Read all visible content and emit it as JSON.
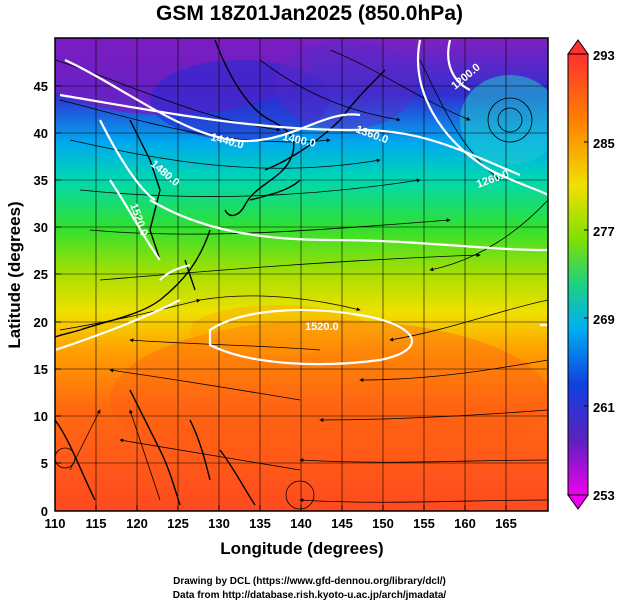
{
  "title": "GSM 18Z01Jan2025 (850.0hPa)",
  "axes": {
    "xlabel": "Longitude (degrees)",
    "ylabel": "Latitude  (degrees)",
    "xticks": [
      "110",
      "115",
      "120",
      "125",
      "130",
      "135",
      "140",
      "145",
      "150",
      "155",
      "160",
      "165"
    ],
    "yticks": [
      "0",
      "5",
      "10",
      "15",
      "20",
      "25",
      "30",
      "35",
      "40",
      "45"
    ],
    "xlim": [
      110,
      170
    ],
    "ylim": [
      0,
      50
    ]
  },
  "colorbar": {
    "ticks": [
      "293",
      "285",
      "277",
      "269",
      "261",
      "253"
    ],
    "range": [
      253,
      293
    ],
    "colors": [
      "#e000e0",
      "#6020c0",
      "#0030e0",
      "#00a0f0",
      "#00e0c0",
      "#20e020",
      "#a0e000",
      "#f0e000",
      "#ff9000",
      "#ff4020"
    ]
  },
  "contours": {
    "labels": [
      "1200.0",
      "1260.0",
      "1360.0",
      "1400.0",
      "1440.0",
      "1480.0",
      "1520.0",
      "1520.0"
    ]
  },
  "footer": {
    "line1": "Drawing by DCL (https://www.gfd-dennou.org/library/dcl/)",
    "line2": "Data from http://database.rish.kyoto-u.ac.jp/arch/jmadata/"
  }
}
